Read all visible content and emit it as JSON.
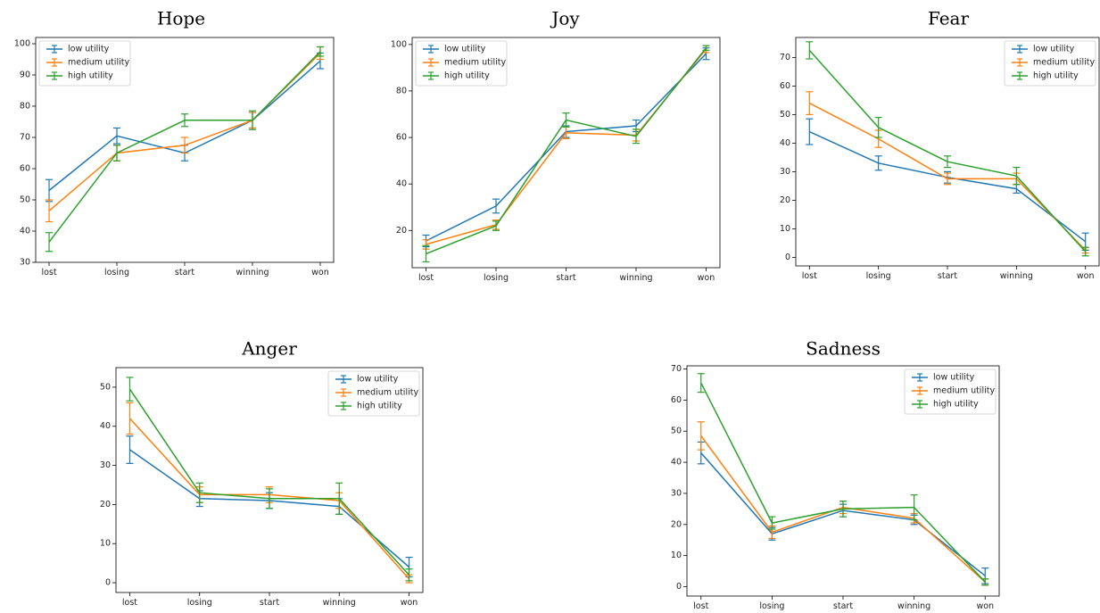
{
  "colors": {
    "low": "#1f77b4",
    "medium": "#ff7f0e",
    "high": "#2ca02c"
  },
  "legend": [
    "low utility",
    "medium utility",
    "high utility"
  ],
  "chart_data": [
    {
      "type": "line",
      "title": "Hope",
      "categories": [
        "lost",
        "losing",
        "start",
        "winning",
        "won"
      ],
      "yticks": [
        30,
        40,
        50,
        60,
        70,
        80,
        90,
        100
      ],
      "ylim": [
        30,
        102
      ],
      "legend_position": "top-left",
      "series": [
        {
          "name": "low utility",
          "values": [
            53,
            70.5,
            65,
            75.5,
            94.5
          ],
          "errors": [
            3.5,
            2.5,
            2.5,
            2.5,
            2.5
          ]
        },
        {
          "name": "medium utility",
          "values": [
            46.5,
            65,
            67.5,
            75.5,
            97
          ],
          "errors": [
            3.5,
            2.5,
            2.5,
            2.5,
            2
          ]
        },
        {
          "name": "high utility",
          "values": [
            36.5,
            65,
            75.5,
            75.5,
            97.5
          ],
          "errors": [
            3,
            2.5,
            2,
            3,
            1.5
          ]
        }
      ]
    },
    {
      "type": "line",
      "title": "Joy",
      "categories": [
        "lost",
        "losing",
        "start",
        "winning",
        "won"
      ],
      "yticks": [
        20,
        40,
        60,
        80,
        100
      ],
      "ylim": [
        4,
        103
      ],
      "legend_position": "top-left",
      "series": [
        {
          "name": "low utility",
          "values": [
            15.5,
            30.5,
            62.5,
            65,
            96
          ],
          "errors": [
            2.5,
            3,
            2.5,
            2.5,
            2.5
          ]
        },
        {
          "name": "medium utility",
          "values": [
            14,
            22.5,
            62,
            61,
            98
          ],
          "errors": [
            2,
            2,
            2.5,
            2.5,
            1.5
          ]
        },
        {
          "name": "high utility",
          "values": [
            10,
            22,
            67.5,
            60.5,
            98.5
          ],
          "errors": [
            3.5,
            2,
            3,
            3,
            1
          ]
        }
      ]
    },
    {
      "type": "line",
      "title": "Fear",
      "categories": [
        "lost",
        "losing",
        "start",
        "winning",
        "won"
      ],
      "yticks": [
        0,
        10,
        20,
        30,
        40,
        50,
        60,
        70
      ],
      "ylim": [
        -3,
        77
      ],
      "legend_position": "top-right",
      "series": [
        {
          "name": "low utility",
          "values": [
            44,
            33,
            28,
            24,
            5.5
          ],
          "errors": [
            4.5,
            2.5,
            2,
            1.5,
            3
          ]
        },
        {
          "name": "medium utility",
          "values": [
            54,
            41.5,
            27.5,
            27.5,
            2.5
          ],
          "errors": [
            4,
            3,
            2,
            2,
            1
          ]
        },
        {
          "name": "high utility",
          "values": [
            72.5,
            45.5,
            33.5,
            28.5,
            2
          ],
          "errors": [
            3,
            3.5,
            2,
            3,
            1.5
          ]
        }
      ]
    },
    {
      "type": "line",
      "title": "Anger",
      "categories": [
        "lost",
        "losing",
        "start",
        "winning",
        "won"
      ],
      "yticks": [
        0,
        10,
        20,
        30,
        40,
        50
      ],
      "ylim": [
        -2.5,
        55
      ],
      "legend_position": "top-right",
      "series": [
        {
          "name": "low utility",
          "values": [
            34,
            21.5,
            21,
            19.5,
            4
          ],
          "errors": [
            3.5,
            2,
            2,
            2,
            2.5
          ]
        },
        {
          "name": "medium utility",
          "values": [
            42,
            22.5,
            22.5,
            21,
            1
          ],
          "errors": [
            4,
            2,
            2,
            2,
            1
          ]
        },
        {
          "name": "high utility",
          "values": [
            49.5,
            23,
            21.5,
            21.5,
            2
          ],
          "errors": [
            3,
            2.5,
            2.5,
            4,
            1.5
          ]
        }
      ]
    },
    {
      "type": "line",
      "title": "Sadness",
      "categories": [
        "lost",
        "losing",
        "start",
        "winning",
        "won"
      ],
      "yticks": [
        0,
        10,
        20,
        30,
        40,
        50,
        60,
        70
      ],
      "ylim": [
        -3,
        71
      ],
      "legend_position": "top-right",
      "series": [
        {
          "name": "low utility",
          "values": [
            43,
            17,
            24.5,
            21.5,
            3.5
          ],
          "errors": [
            3.5,
            2,
            2,
            1.5,
            2.5
          ]
        },
        {
          "name": "medium utility",
          "values": [
            48.5,
            17.5,
            25.5,
            22,
            1.5
          ],
          "errors": [
            4.5,
            2,
            2,
            1.5,
            1
          ]
        },
        {
          "name": "high utility",
          "values": [
            65.5,
            20.5,
            25,
            25.5,
            1.5
          ],
          "errors": [
            3,
            2,
            2.5,
            4,
            1
          ]
        }
      ]
    }
  ]
}
